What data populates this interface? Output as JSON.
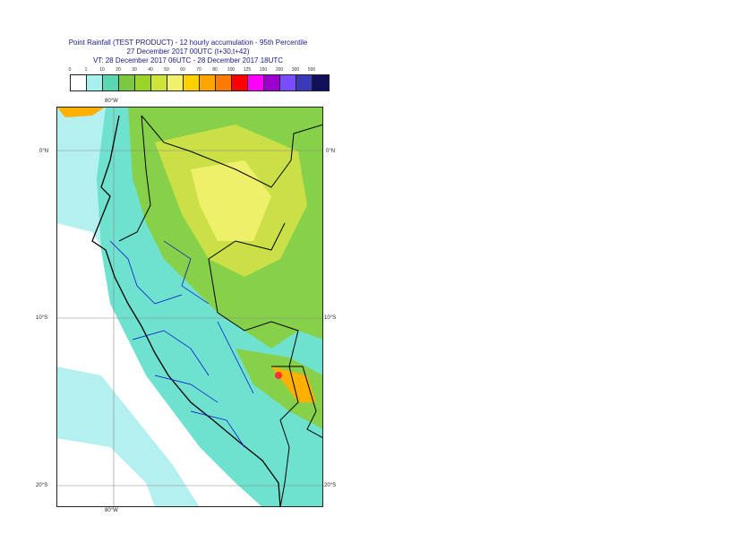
{
  "title": {
    "line1": "Point Rainfall (TEST PRODUCT) - 12 hourly accumulation - 95th Percentile",
    "line2": "27 December 2017 00UTC (t+30,t+42)",
    "line3": "VT: 28 December 2017 06UTC - 28 December 2017 18UTC"
  },
  "legend": {
    "thresholds": [
      "0",
      "1",
      "10",
      "20",
      "30",
      "40",
      "50",
      "60",
      "70",
      "80",
      "100",
      "125",
      "150",
      "200",
      "300",
      "500"
    ],
    "colors": [
      "#ffffff",
      "#a8f0ee",
      "#5ad6b0",
      "#7cc843",
      "#9ad32a",
      "#cde53a",
      "#f0f06a",
      "#ffd000",
      "#ffa500",
      "#ff7a00",
      "#ff0000",
      "#ff00ff",
      "#9b00d0",
      "#7a4cff",
      "#3a3ab8",
      "#10105a"
    ]
  },
  "axes": {
    "lon_top": "80°W",
    "lon_bottom": "80°W",
    "lat_labels": [
      "0°N",
      "10°S",
      "20°S"
    ]
  },
  "colors": {
    "sea_light": "#b5f0f0",
    "cyan": "#6fe2cf",
    "green": "#86d04a",
    "yellowgreen": "#cbe046",
    "yellow": "#eef06a",
    "orange": "#ffb000",
    "red": "#ff3030",
    "magenta": "#ff3acd",
    "country_border": "#000000",
    "region_border": "#0000cc",
    "grid": "#888888"
  }
}
